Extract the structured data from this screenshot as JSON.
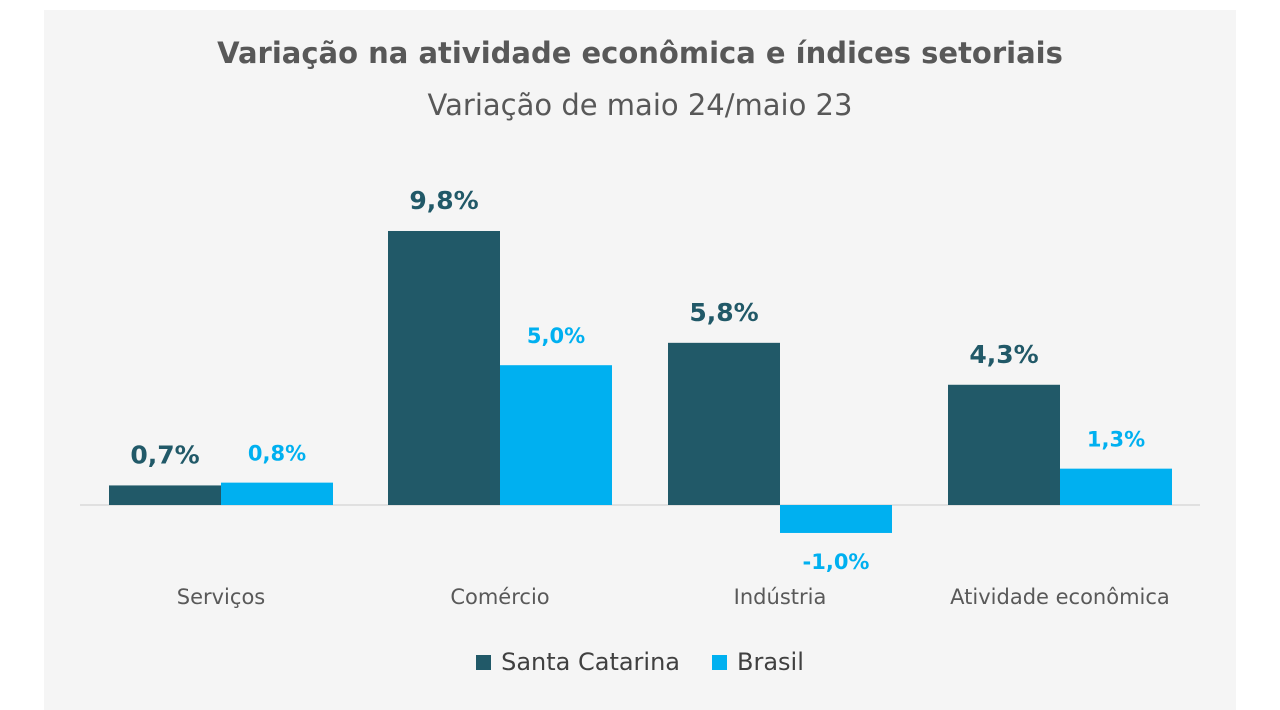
{
  "chart_data": {
    "type": "bar",
    "title": "Variação  na atividade econômica e índices setoriais",
    "subtitle": "Variação de maio 24/maio 23",
    "categories": [
      "Serviços",
      "Comércio",
      "Indústria",
      "Atividade econômica"
    ],
    "series": [
      {
        "name": "Santa Catarina",
        "values": [
          0.7,
          9.8,
          5.8,
          4.3
        ],
        "labels": [
          "0,7%",
          "9,8%",
          "5,8%",
          "4,3%"
        ],
        "color": "#215968"
      },
      {
        "name": "Brasil",
        "values": [
          0.8,
          5.0,
          -1.0,
          1.3
        ],
        "labels": [
          "0,8%",
          "5,0%",
          "-1,0%",
          "1,3%"
        ],
        "color": "#00b0f0"
      }
    ],
    "ylim": [
      -1.0,
      9.8
    ],
    "grid": false,
    "legend": "bottom"
  }
}
